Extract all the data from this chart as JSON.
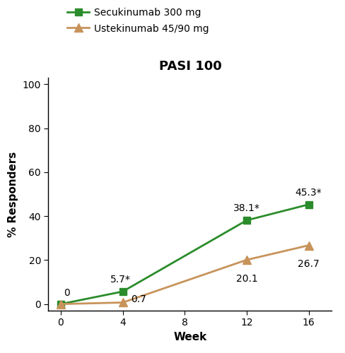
{
  "title": "PASI 100",
  "xlabel": "Week",
  "ylabel": "% Responders",
  "weeks": [
    0,
    4,
    12,
    16
  ],
  "secukinumab": [
    0,
    5.7,
    38.1,
    45.3
  ],
  "ustekinumab": [
    0,
    0.7,
    20.1,
    26.7
  ],
  "secukinumab_labels": [
    "0",
    "5.7*",
    "38.1*",
    "45.3*"
  ],
  "ustekinumab_labels": [
    "",
    "0.7",
    "20.1",
    "26.7"
  ],
  "secukinumab_color": "#2a8c2a",
  "ustekinumab_color": "#c8935a",
  "secukinumab_legend": "Secukinumab 300 mg",
  "ustekinumab_legend": "Ustekinumab 45/90 mg",
  "ylim": [
    -3,
    103
  ],
  "yticks": [
    0,
    20,
    40,
    60,
    80,
    100
  ],
  "xticks": [
    0,
    4,
    8,
    12,
    16
  ],
  "xlim": [
    -0.8,
    17.5
  ],
  "background_color": "#ffffff",
  "title_fontsize": 13,
  "axis_label_fontsize": 11,
  "tick_fontsize": 10,
  "legend_fontsize": 10,
  "annotation_fontsize": 10
}
